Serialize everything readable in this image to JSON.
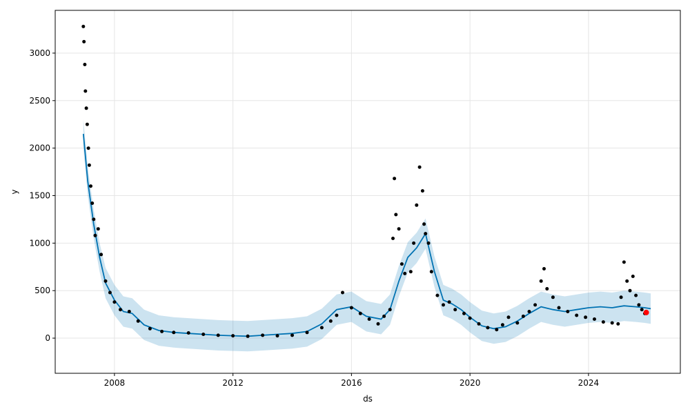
{
  "chart_data": {
    "type": "scatter",
    "xlabel": "ds",
    "ylabel": "y",
    "xlim": [
      2006.0,
      2027.1
    ],
    "ylim": [
      -370,
      3450
    ],
    "x_ticks": [
      2008,
      2012,
      2016,
      2020,
      2024
    ],
    "x_tick_labels": [
      "2008",
      "2012",
      "2016",
      "2020",
      "2024"
    ],
    "y_ticks": [
      0,
      500,
      1000,
      1500,
      2000,
      2500,
      3000
    ],
    "y_tick_labels": [
      "0",
      "500",
      "1000",
      "1500",
      "2000",
      "2500",
      "3000"
    ],
    "grid": true,
    "colors": {
      "points": "#000000",
      "forecast_line": "#0072B2",
      "uncertainty_band": "#0072B2",
      "highlight_point": "#ff0000",
      "grid": "#e5e5e5"
    },
    "series": [
      {
        "role": "observed",
        "x": [
          2006.95,
          2006.97,
          2007.0,
          2007.02,
          2007.05,
          2007.08,
          2007.12,
          2007.15,
          2007.2,
          2007.25,
          2007.3,
          2007.35,
          2007.45,
          2007.55,
          2007.7,
          2007.85,
          2008.0,
          2008.2,
          2008.5,
          2008.8,
          2009.2,
          2009.6,
          2010.0,
          2010.5,
          2011.0,
          2011.5,
          2012.0,
          2012.5,
          2013.0,
          2013.5,
          2014.0,
          2014.5,
          2015.0,
          2015.3,
          2015.5,
          2015.7,
          2016.0,
          2016.3,
          2016.6,
          2016.9,
          2017.1,
          2017.3,
          2017.4,
          2017.45,
          2017.5,
          2017.6,
          2017.7,
          2017.8,
          2018.0,
          2018.1,
          2018.2,
          2018.3,
          2018.4,
          2018.45,
          2018.5,
          2018.6,
          2018.7,
          2018.9,
          2019.1,
          2019.3,
          2019.5,
          2019.8,
          2020.0,
          2020.3,
          2020.6,
          2020.9,
          2021.1,
          2021.3,
          2021.6,
          2021.8,
          2022.0,
          2022.2,
          2022.4,
          2022.5,
          2022.6,
          2022.8,
          2023.0,
          2023.3,
          2023.6,
          2023.9,
          2024.2,
          2024.5,
          2024.8,
          2025.0,
          2025.1,
          2025.2,
          2025.3,
          2025.4,
          2025.5,
          2025.6,
          2025.7,
          2025.8,
          2025.9
        ],
        "y": [
          3280,
          3120,
          2880,
          2600,
          2420,
          2250,
          2000,
          1820,
          1600,
          1420,
          1250,
          1080,
          1150,
          880,
          600,
          480,
          380,
          300,
          280,
          180,
          100,
          70,
          60,
          55,
          40,
          30,
          25,
          20,
          30,
          25,
          30,
          60,
          110,
          180,
          240,
          480,
          320,
          260,
          200,
          150,
          230,
          300,
          1050,
          1680,
          1300,
          1150,
          780,
          680,
          700,
          1000,
          1400,
          1800,
          1550,
          1200,
          1100,
          1000,
          700,
          450,
          350,
          380,
          300,
          260,
          210,
          150,
          110,
          90,
          140,
          220,
          160,
          230,
          280,
          350,
          600,
          730,
          520,
          430,
          320,
          280,
          240,
          220,
          200,
          170,
          160,
          150,
          430,
          800,
          600,
          500,
          650,
          450,
          350,
          300,
          260
        ]
      },
      {
        "role": "forecast",
        "x": [
          2006.95,
          2007.1,
          2007.3,
          2007.5,
          2007.7,
          2008.0,
          2008.3,
          2008.6,
          2009.0,
          2009.5,
          2010.0,
          2010.5,
          2011.0,
          2011.5,
          2012.0,
          2012.5,
          2013.0,
          2013.5,
          2014.0,
          2014.5,
          2015.0,
          2015.5,
          2016.0,
          2016.5,
          2017.0,
          2017.3,
          2017.6,
          2017.9,
          2018.2,
          2018.5,
          2018.8,
          2019.1,
          2019.4,
          2019.7,
          2020.0,
          2020.4,
          2020.8,
          2021.2,
          2021.6,
          2022.0,
          2022.4,
          2022.8,
          2023.2,
          2023.6,
          2024.0,
          2024.4,
          2024.8,
          2025.2,
          2025.6,
          2025.9,
          2026.1
        ],
        "y": [
          2150,
          1650,
          1200,
          850,
          580,
          400,
          280,
          260,
          140,
          80,
          60,
          50,
          40,
          30,
          25,
          20,
          30,
          40,
          50,
          70,
          150,
          300,
          330,
          230,
          200,
          300,
          600,
          850,
          950,
          1100,
          700,
          400,
          360,
          300,
          220,
          130,
          100,
          120,
          180,
          260,
          330,
          300,
          280,
          300,
          320,
          330,
          320,
          340,
          330,
          320,
          310
        ]
      },
      {
        "role": "uncertainty_band",
        "x": [
          2006.95,
          2007.1,
          2007.3,
          2007.5,
          2007.7,
          2008.0,
          2008.3,
          2008.6,
          2009.0,
          2009.5,
          2010.0,
          2010.5,
          2011.0,
          2011.5,
          2012.0,
          2012.5,
          2013.0,
          2013.5,
          2014.0,
          2014.5,
          2015.0,
          2015.5,
          2016.0,
          2016.5,
          2017.0,
          2017.3,
          2017.6,
          2017.9,
          2018.2,
          2018.5,
          2018.8,
          2019.1,
          2019.4,
          2019.7,
          2020.0,
          2020.4,
          2020.8,
          2021.2,
          2021.6,
          2022.0,
          2022.4,
          2022.8,
          2023.2,
          2023.6,
          2024.0,
          2024.4,
          2024.8,
          2025.2,
          2025.6,
          2025.9,
          2026.1
        ],
        "upper": [
          2300,
          1800,
          1350,
          1000,
          740,
          560,
          440,
          420,
          300,
          240,
          220,
          210,
          200,
          190,
          185,
          180,
          190,
          200,
          210,
          230,
          310,
          460,
          490,
          390,
          360,
          460,
          760,
          1010,
          1110,
          1260,
          860,
          560,
          520,
          460,
          380,
          290,
          260,
          280,
          340,
          420,
          490,
          460,
          440,
          460,
          480,
          490,
          480,
          500,
          490,
          480,
          470
        ],
        "lower": [
          2000,
          1500,
          1050,
          700,
          420,
          240,
          120,
          100,
          -20,
          -80,
          -100,
          -110,
          -120,
          -130,
          -135,
          -140,
          -130,
          -120,
          -110,
          -90,
          -10,
          140,
          170,
          70,
          40,
          140,
          440,
          690,
          790,
          940,
          540,
          240,
          200,
          140,
          60,
          -30,
          -60,
          -40,
          20,
          100,
          170,
          140,
          120,
          140,
          160,
          170,
          160,
          180,
          170,
          160,
          150
        ]
      },
      {
        "role": "highlight",
        "x": [
          2025.95
        ],
        "y": [
          270
        ]
      }
    ]
  }
}
